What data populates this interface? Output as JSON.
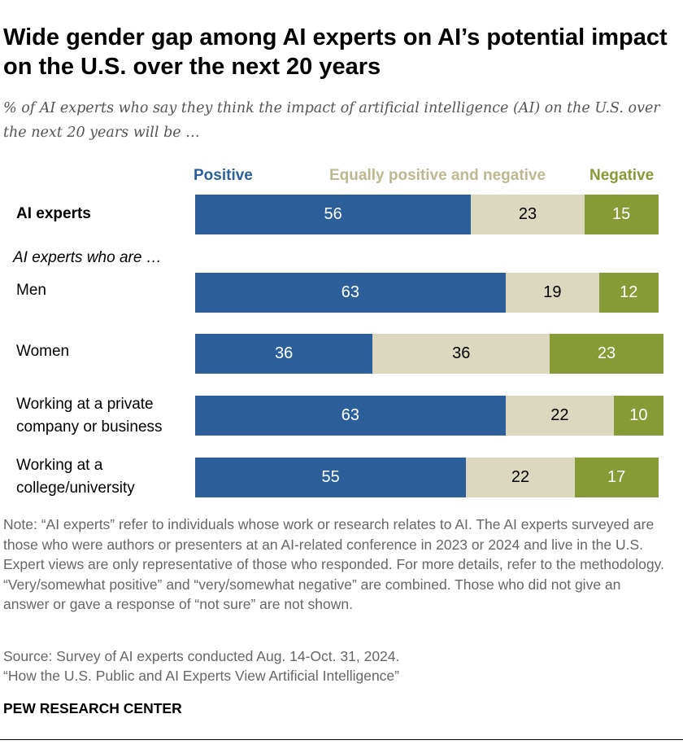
{
  "title": "Wide gender gap among AI experts on AI’s potential impact on the U.S. over the next 20 years",
  "subtitle": "% of AI experts who say they think the impact of artificial intelligence (AI) on the U.S. over the next 20 years will be …",
  "group_label": "AI experts who are …",
  "note": "Note: “AI experts” refer to individuals whose work or research relates to AI. The AI experts surveyed are those who were authors or presenters at an AI-related conference in 2023 or 2024 and live in the U.S. Expert views are only representative of those who responded. For more details, refer to the methodology. “Very/somewhat positive” and “very/somewhat negative” are combined. Those who did not give an answer or gave a response of “not sure” are not shown.",
  "source": "Source: Survey of AI experts conducted Aug. 14-Oct. 31, 2024.",
  "report": "“How the U.S. Public and AI Experts View Artificial Intelligence”",
  "brand": "PEW RESEARCH CENTER",
  "chart_data": {
    "type": "bar",
    "orientation": "horizontal",
    "stacked": true,
    "categories": [
      "AI experts",
      "Men",
      "Women",
      "Working at a private company or business",
      "Working at a college/university"
    ],
    "series": [
      {
        "name": "Positive",
        "color": "#2c5f9a",
        "values": [
          56,
          63,
          36,
          63,
          55
        ]
      },
      {
        "name": "Equally positive and negative",
        "color": "#dcd8c0",
        "values": [
          23,
          19,
          36,
          22,
          22
        ]
      },
      {
        "name": "Negative",
        "color": "#869a36",
        "values": [
          15,
          12,
          23,
          10,
          17
        ]
      }
    ],
    "legend_text_colors": [
      "#2c5f9a",
      "#bdb890",
      "#869a36"
    ],
    "legend": "top",
    "grid": false
  }
}
